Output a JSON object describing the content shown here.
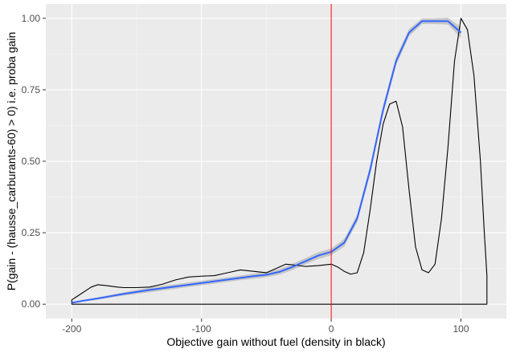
{
  "chart_data": {
    "type": "line",
    "title": "",
    "xlabel": "Objective gain without fuel (density in black)",
    "ylabel": "P(gain - (hausse_carburants-60) > 0) i.e. proba gain",
    "xlim": [
      -220,
      135
    ],
    "ylim": [
      -0.05,
      1.05
    ],
    "x_ticks": [
      -200,
      -100,
      0,
      100
    ],
    "x_tick_labels": [
      "-200",
      "-100",
      "0",
      "100"
    ],
    "y_ticks": [
      0,
      0.25,
      0.5,
      0.75,
      1.0
    ],
    "y_tick_labels": [
      "0.00",
      "0.25",
      "0.50",
      "0.75",
      "1.00"
    ],
    "grid": true,
    "legend": "none",
    "vline": {
      "x": 0,
      "color": "#ff0000"
    },
    "series": [
      {
        "kind": "smooth",
        "color": "#3366ff",
        "band_color": "#bfbfbf",
        "x": [
          -200,
          -190,
          -180,
          -170,
          -160,
          -150,
          -140,
          -130,
          -120,
          -110,
          -100,
          -90,
          -80,
          -70,
          -60,
          -50,
          -40,
          -30,
          -20,
          -10,
          0,
          10,
          20,
          30,
          40,
          50,
          60,
          70,
          80,
          90,
          95,
          100
        ],
        "y": [
          0.005,
          0.013,
          0.02,
          0.028,
          0.036,
          0.043,
          0.05,
          0.056,
          0.062,
          0.068,
          0.074,
          0.08,
          0.086,
          0.092,
          0.098,
          0.103,
          0.113,
          0.13,
          0.15,
          0.17,
          0.183,
          0.215,
          0.3,
          0.47,
          0.68,
          0.85,
          0.95,
          0.99,
          0.99,
          0.99,
          0.97,
          0.95
        ],
        "lower": [
          0.003,
          0.01,
          0.016,
          0.023,
          0.03,
          0.036,
          0.042,
          0.048,
          0.054,
          0.06,
          0.066,
          0.072,
          0.078,
          0.084,
          0.089,
          0.094,
          0.103,
          0.119,
          0.139,
          0.158,
          0.171,
          0.202,
          0.286,
          0.455,
          0.665,
          0.835,
          0.937,
          0.98,
          0.98,
          0.978,
          0.955,
          0.93
        ],
        "upper": [
          0.008,
          0.016,
          0.024,
          0.033,
          0.042,
          0.05,
          0.058,
          0.064,
          0.07,
          0.076,
          0.082,
          0.088,
          0.094,
          0.1,
          0.107,
          0.113,
          0.123,
          0.141,
          0.161,
          0.182,
          0.195,
          0.228,
          0.314,
          0.485,
          0.695,
          0.865,
          0.963,
          1.0,
          1.0,
          1.002,
          0.985,
          0.97
        ]
      },
      {
        "kind": "density",
        "color": "#000000",
        "x": [
          -200,
          -195,
          -190,
          -185,
          -180,
          -175,
          -170,
          -165,
          -160,
          -150,
          -140,
          -130,
          -120,
          -110,
          -100,
          -90,
          -80,
          -70,
          -60,
          -50,
          -40,
          -35,
          -30,
          -20,
          -10,
          0,
          5,
          10,
          15,
          20,
          25,
          30,
          35,
          40,
          45,
          50,
          55,
          60,
          65,
          70,
          75,
          80,
          85,
          90,
          95,
          100,
          105,
          110,
          115,
          118,
          120
        ],
        "y": [
          0.015,
          0.03,
          0.045,
          0.06,
          0.068,
          0.066,
          0.063,
          0.06,
          0.058,
          0.058,
          0.06,
          0.07,
          0.085,
          0.095,
          0.098,
          0.1,
          0.11,
          0.12,
          0.115,
          0.11,
          0.13,
          0.14,
          0.138,
          0.132,
          0.135,
          0.14,
          0.13,
          0.115,
          0.105,
          0.11,
          0.18,
          0.33,
          0.5,
          0.63,
          0.7,
          0.71,
          0.62,
          0.4,
          0.2,
          0.12,
          0.11,
          0.14,
          0.3,
          0.55,
          0.85,
          1.0,
          0.96,
          0.8,
          0.5,
          0.25,
          0.1
        ],
        "baseline_end": 120
      }
    ]
  }
}
